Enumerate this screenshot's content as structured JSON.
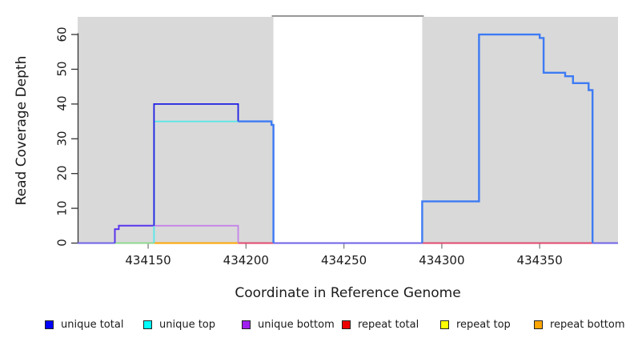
{
  "chart_data": {
    "type": "line",
    "subtype": "step-coverage",
    "title": "",
    "xlabel": "Coordinate in Reference Genome",
    "ylabel": "Read Coverage Depth",
    "xlim": [
      434114,
      434390
    ],
    "ylim": [
      0,
      65.2
    ],
    "x_ticks": [
      434150,
      434200,
      434250,
      434300,
      434350
    ],
    "y_ticks": [
      0,
      10,
      20,
      30,
      40,
      50,
      60
    ],
    "grid": false,
    "legend_position": "bottom",
    "shaded_regions": [
      {
        "x0": 434114,
        "x1": 434214,
        "fill": "#D9D9D9"
      },
      {
        "x0": 434290,
        "x1": 434390,
        "fill": "#D9D9D9"
      }
    ],
    "clip_line": {
      "x0": 434214,
      "x1": 434290,
      "y": 65.2,
      "color": "#777777"
    },
    "series": [
      {
        "name": "unique total",
        "color": "#0000FF",
        "steps": [
          [
            434114,
            0
          ],
          [
            434133,
            4
          ],
          [
            434135,
            5
          ],
          [
            434153,
            40
          ],
          [
            434196,
            35
          ],
          [
            434213,
            34
          ],
          [
            434214,
            0
          ],
          [
            434290,
            12
          ],
          [
            434319,
            60
          ],
          [
            434350,
            59
          ],
          [
            434352,
            49
          ],
          [
            434363,
            48
          ],
          [
            434367,
            46
          ],
          [
            434375,
            44
          ],
          [
            434377,
            0
          ],
          [
            434390,
            0
          ]
        ]
      },
      {
        "name": "unique top",
        "color": "#00FFFF",
        "steps": [
          [
            434114,
            0
          ],
          [
            434153,
            35
          ],
          [
            434213,
            34
          ],
          [
            434214,
            0
          ],
          [
            434290,
            12
          ],
          [
            434319,
            60
          ],
          [
            434350,
            59
          ],
          [
            434352,
            49
          ],
          [
            434363,
            48
          ],
          [
            434367,
            46
          ],
          [
            434375,
            44
          ],
          [
            434377,
            0
          ],
          [
            434390,
            0
          ]
        ]
      },
      {
        "name": "unique bottom",
        "color": "#A020F0",
        "steps": [
          [
            434114,
            0
          ],
          [
            434133,
            4
          ],
          [
            434135,
            5
          ],
          [
            434196,
            0
          ],
          [
            434390,
            0
          ]
        ]
      },
      {
        "name": "repeat total",
        "color": "#EE0000",
        "steps": [
          [
            434114,
            0
          ],
          [
            434390,
            0
          ]
        ]
      },
      {
        "name": "repeat top",
        "color": "#FFFF00",
        "steps": [
          [
            434114,
            0
          ],
          [
            434390,
            0
          ]
        ]
      },
      {
        "name": "repeat bottom",
        "color": "#FFA500",
        "steps": [
          [
            434114,
            0
          ],
          [
            434390,
            0
          ]
        ]
      }
    ],
    "render_segments": [
      {
        "color": "#6E62E8",
        "w": 2.0,
        "pts": [
          [
            434114,
            0
          ],
          [
            434133,
            0
          ]
        ]
      },
      {
        "color": "#8FD98F",
        "w": 2.0,
        "pts": [
          [
            434133,
            0
          ],
          [
            434153,
            0
          ]
        ]
      },
      {
        "color": "#FFA500",
        "w": 2.0,
        "pts": [
          [
            434153,
            0
          ],
          [
            434196,
            0
          ]
        ]
      },
      {
        "color": "#E0486E",
        "w": 2.0,
        "pts": [
          [
            434196,
            0
          ],
          [
            434214,
            0
          ]
        ]
      },
      {
        "color": "#6E62E8",
        "w": 2.0,
        "pts": [
          [
            434214,
            0
          ],
          [
            434290,
            0
          ]
        ]
      },
      {
        "color": "#E0486E",
        "w": 2.0,
        "pts": [
          [
            434290,
            0
          ],
          [
            434377,
            0
          ]
        ]
      },
      {
        "color": "#6E62E8",
        "w": 2.0,
        "pts": [
          [
            434377,
            0
          ],
          [
            434390,
            0
          ]
        ]
      },
      {
        "color": "#5A35EE",
        "w": 2.0,
        "pts": [
          [
            434133,
            0
          ],
          [
            434133,
            4
          ],
          [
            434135,
            4
          ],
          [
            434135,
            5
          ],
          [
            434153,
            5
          ]
        ]
      },
      {
        "color": "#55E8E8",
        "w": 1.8,
        "pts": [
          [
            434153,
            0
          ],
          [
            434153,
            35
          ],
          [
            434196,
            35
          ]
        ]
      },
      {
        "color": "#C583EA",
        "w": 1.8,
        "pts": [
          [
            434153,
            5
          ],
          [
            434196,
            5
          ],
          [
            434196,
            0
          ]
        ]
      },
      {
        "color": "#1E1EE4",
        "w": 1.8,
        "pts": [
          [
            434153,
            5
          ],
          [
            434153,
            40
          ],
          [
            434196,
            40
          ],
          [
            434196,
            35
          ]
        ]
      },
      {
        "color": "#3D7BF4",
        "w": 2.4,
        "pts": [
          [
            434196,
            35
          ],
          [
            434213,
            35
          ],
          [
            434213,
            34
          ],
          [
            434214,
            34
          ],
          [
            434214,
            0
          ]
        ]
      },
      {
        "color": "#3D7BF4",
        "w": 2.4,
        "pts": [
          [
            434290,
            0
          ],
          [
            434290,
            12
          ],
          [
            434319,
            12
          ],
          [
            434319,
            60
          ],
          [
            434350,
            60
          ],
          [
            434350,
            59
          ],
          [
            434352,
            59
          ],
          [
            434352,
            49
          ],
          [
            434363,
            49
          ],
          [
            434363,
            48
          ],
          [
            434367,
            48
          ],
          [
            434367,
            46
          ],
          [
            434375,
            46
          ],
          [
            434375,
            44
          ],
          [
            434377,
            44
          ],
          [
            434377,
            0
          ]
        ]
      }
    ]
  },
  "legend": {
    "items": [
      {
        "label": "unique total",
        "color": "#0000FF"
      },
      {
        "label": "unique top",
        "color": "#00FFFF"
      },
      {
        "label": "unique bottom",
        "color": "#A020F0"
      },
      {
        "label": "repeat total",
        "color": "#EE0000"
      },
      {
        "label": "repeat top",
        "color": "#FFFF00"
      },
      {
        "label": "repeat bottom",
        "color": "#FFA500"
      }
    ]
  }
}
